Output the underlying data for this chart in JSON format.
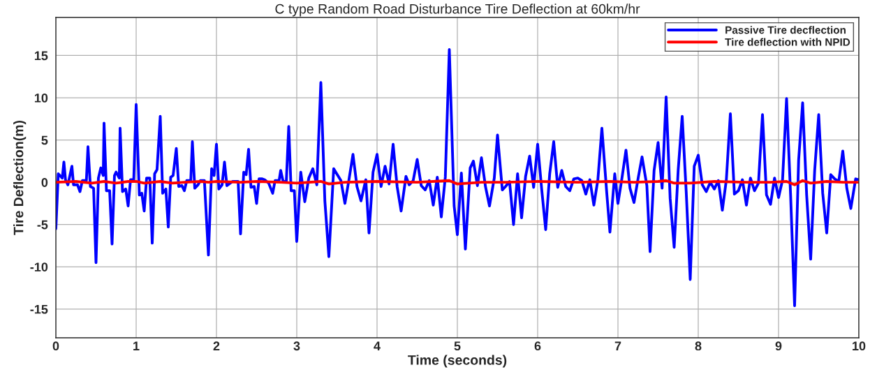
{
  "chart_data": {
    "type": "line",
    "title": "C type Random Road Disturbance Tire Deflection at 60km/hr",
    "xlabel": "Time (seconds)",
    "ylabel": "Tire Deflection(m)",
    "xlim": [
      0,
      10
    ],
    "ylim": [
      -18.4,
      19.5
    ],
    "xticks": [
      0,
      1,
      2,
      3,
      4,
      5,
      6,
      7,
      8,
      9,
      10
    ],
    "yticks": [
      -15,
      -10,
      -5,
      0,
      5,
      10,
      15
    ],
    "grid": true,
    "legend": "top right",
    "line_style": "solid",
    "marker": "none",
    "series": [
      {
        "name": "Passive Tire decflection",
        "color": "#0000ff",
        "x": [
          0,
          0.03,
          0.08,
          0.1,
          0.12,
          0.15,
          0.2,
          0.22,
          0.27,
          0.3,
          0.33,
          0.38,
          0.4,
          0.43,
          0.47,
          0.5,
          0.53,
          0.56,
          0.59,
          0.6,
          0.63,
          0.67,
          0.7,
          0.73,
          0.75,
          0.79,
          0.8,
          0.83,
          0.87,
          0.9,
          0.93,
          0.97,
          1.0,
          1.04,
          1.07,
          1.1,
          1.13,
          1.17,
          1.2,
          1.23,
          1.26,
          1.3,
          1.33,
          1.37,
          1.4,
          1.43,
          1.46,
          1.5,
          1.53,
          1.57,
          1.6,
          1.63,
          1.68,
          1.7,
          1.73,
          1.77,
          1.8,
          1.85,
          1.9,
          1.94,
          1.97,
          2.0,
          2.03,
          2.07,
          2.1,
          2.13,
          2.2,
          2.27,
          2.3,
          2.34,
          2.37,
          2.4,
          2.43,
          2.47,
          2.5,
          2.53,
          2.57,
          2.6,
          2.65,
          2.7,
          2.73,
          2.78,
          2.8,
          2.83,
          2.87,
          2.9,
          2.93,
          2.97,
          3.0,
          3.05,
          3.1,
          3.15,
          3.2,
          3.25,
          3.3,
          3.35,
          3.4,
          3.46,
          3.55,
          3.6,
          3.65,
          3.7,
          3.75,
          3.8,
          3.86,
          3.9,
          3.95,
          4.0,
          4.05,
          4.1,
          4.15,
          4.2,
          4.25,
          4.3,
          4.36,
          4.4,
          4.45,
          4.5,
          4.55,
          4.6,
          4.65,
          4.7,
          4.75,
          4.8,
          4.85,
          4.9,
          4.96,
          5.0,
          5.05,
          5.1,
          5.16,
          5.2,
          5.25,
          5.3,
          5.35,
          5.4,
          5.46,
          5.5,
          5.56,
          5.6,
          5.65,
          5.7,
          5.75,
          5.8,
          5.85,
          5.9,
          5.95,
          6.0,
          6.05,
          6.1,
          6.15,
          6.2,
          6.25,
          6.3,
          6.35,
          6.4,
          6.45,
          6.5,
          6.55,
          6.6,
          6.65,
          6.7,
          6.75,
          6.8,
          6.86,
          6.9,
          6.96,
          7.0,
          7.05,
          7.1,
          7.15,
          7.2,
          7.25,
          7.3,
          7.36,
          7.4,
          7.45,
          7.5,
          7.55,
          7.6,
          7.65,
          7.7,
          7.75,
          7.8,
          7.85,
          7.9,
          7.95,
          8.0,
          8.05,
          8.1,
          8.15,
          8.2,
          8.25,
          8.3,
          8.35,
          8.4,
          8.45,
          8.5,
          8.55,
          8.6,
          8.65,
          8.7,
          8.75,
          8.8,
          8.85,
          8.9,
          8.95,
          9.0,
          9.05,
          9.1,
          9.15,
          9.2,
          9.25,
          9.3,
          9.35,
          9.4,
          9.45,
          9.5,
          9.55,
          9.6,
          9.65,
          9.7,
          9.75,
          9.8,
          9.85,
          9.9,
          9.96,
          10.0
        ],
        "values": [
          -5.5,
          1.0,
          0.5,
          2.4,
          0.3,
          -0.3,
          1.9,
          -0.3,
          -0.3,
          -1.1,
          0.2,
          0.2,
          4.2,
          -0.5,
          -0.7,
          -9.5,
          0.5,
          1.7,
          0.8,
          7.0,
          -1.0,
          -1.0,
          -7.3,
          0.8,
          1.2,
          0.5,
          6.4,
          -1.1,
          -0.8,
          -2.8,
          0.3,
          0.3,
          9.2,
          -1.5,
          -1.3,
          -3.4,
          0.5,
          0.5,
          -7.2,
          1.0,
          1.5,
          7.8,
          -1.3,
          -0.8,
          -5.3,
          0.6,
          0.8,
          4.0,
          -0.5,
          -0.4,
          -1.0,
          0.2,
          0.2,
          4.8,
          -0.7,
          -0.3,
          0.2,
          0.2,
          -8.6,
          1.6,
          0.8,
          4.5,
          -0.8,
          -0.3,
          2.4,
          -0.4,
          0.1,
          0.1,
          -6.1,
          1.2,
          0.9,
          3.9,
          -0.6,
          -0.5,
          -2.5,
          0.4,
          0.4,
          0.3,
          -0.1,
          -1.3,
          0.2,
          0.2,
          1.4,
          0.1,
          0.1,
          6.6,
          -1.0,
          -1.0,
          -7.0,
          1.2,
          -2.3,
          0.5,
          1.6,
          -0.3,
          11.8,
          -2.2,
          -8.8,
          1.6,
          0.2,
          -2.5,
          0.3,
          3.3,
          -0.5,
          -2.2,
          0.3,
          -6.0,
          1.2,
          3.3,
          -0.5,
          1.9,
          -0.2,
          4.5,
          -0.5,
          -3.4,
          0.7,
          -0.3,
          0.2,
          2.7,
          -0.4,
          -0.9,
          0.2,
          -2.7,
          0.6,
          -4.1,
          0.6,
          15.7,
          -2.8,
          -6.2,
          1.1,
          -7.9,
          1.7,
          2.5,
          -0.4,
          2.9,
          -0.5,
          -2.8,
          0.5,
          5.6,
          -0.9,
          -0.5,
          0.1,
          -5.0,
          1.0,
          -4.2,
          0.7,
          3.1,
          -0.6,
          4.5,
          -0.8,
          -5.6,
          1.0,
          4.8,
          -0.6,
          1.4,
          -0.5,
          -1.0,
          0.4,
          0.5,
          0.2,
          -1.4,
          0.3,
          -2.7,
          0.3,
          6.4,
          -1.2,
          -5.9,
          1.0,
          -2.5,
          0.5,
          3.8,
          -0.7,
          -2.4,
          0.4,
          3.0,
          -0.4,
          -8.2,
          1.4,
          4.7,
          -0.7,
          10.1,
          -1.9,
          -7.7,
          1.4,
          7.8,
          -1.1,
          -11.5,
          1.9,
          3.2,
          -0.3,
          -1.1,
          0.0,
          -0.8,
          0.2,
          -3.3,
          0.3,
          8.1,
          -1.4,
          -1.0,
          0.3,
          -2.7,
          0.5,
          -1.0,
          -0.1,
          8.0,
          -1.5,
          -2.6,
          0.5,
          -1.8,
          0.3,
          9.9,
          -1.5,
          -14.6,
          2.6,
          9.4,
          -1.5,
          -9.1,
          1.4,
          8.0,
          -1.3,
          -6.0,
          0.9,
          0.4,
          0.1,
          3.7,
          -0.7,
          -3.1,
          0.4,
          0.3
        ]
      },
      {
        "name": "Tire deflection with NPID",
        "color": "#ff0000",
        "x": [
          0,
          0.25,
          0.45,
          0.6,
          0.75,
          0.9,
          1.0,
          1.1,
          1.3,
          1.45,
          1.6,
          1.8,
          1.9,
          2.0,
          2.3,
          2.5,
          2.8,
          3.0,
          3.3,
          3.4,
          3.6,
          4.0,
          4.5,
          4.9,
          5.0,
          5.3,
          5.6,
          6.0,
          6.5,
          6.9,
          7.2,
          7.5,
          7.6,
          7.7,
          7.9,
          8.2,
          8.6,
          8.9,
          9.1,
          9.2,
          9.3,
          9.4,
          9.6,
          9.8,
          10.0
        ],
        "values": [
          0.0,
          0.1,
          -0.1,
          0.1,
          -0.1,
          0.1,
          0.1,
          -0.1,
          0.1,
          -0.1,
          0.0,
          0.1,
          0.0,
          0.1,
          0.0,
          0.1,
          0.0,
          -0.1,
          0.1,
          -0.2,
          0.0,
          0.1,
          0.0,
          0.2,
          -0.2,
          0.0,
          0.0,
          0.1,
          0.0,
          0.1,
          0.0,
          0.1,
          0.2,
          -0.1,
          -0.1,
          0.1,
          0.0,
          0.0,
          0.1,
          -0.3,
          0.2,
          -0.1,
          0.1,
          0.0,
          0.0
        ]
      }
    ]
  }
}
